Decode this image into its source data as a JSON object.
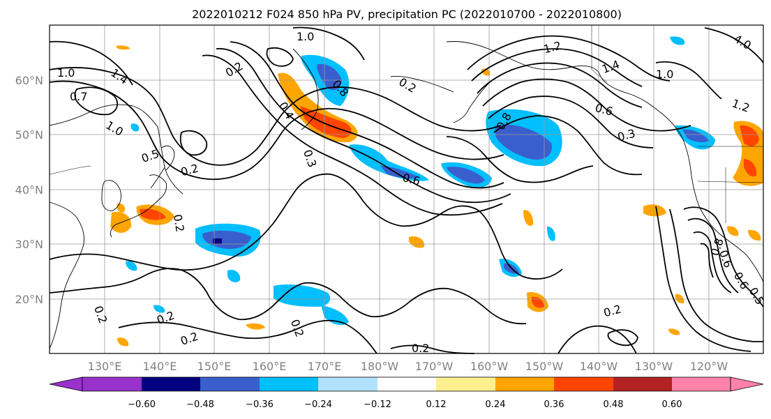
{
  "title": "2022010212 F024 850 hPa PV, precipitation PC (2022010700 - 2022010800)",
  "lat_ticks": [
    "20°N",
    "30°N",
    "40°N",
    "50°N",
    "60°N"
  ],
  "lon_ticks": [
    "130°E",
    "140°E",
    "150°E",
    "160°E",
    "170°E",
    "180°W",
    "170°W",
    "160°W",
    "150°W",
    "140°W",
    "130°W",
    "120°W"
  ],
  "colorbar": {
    "ticks": [
      "−0.60",
      "−0.48",
      "−0.36",
      "−0.24",
      "−0.12",
      "0.12",
      "0.24",
      "0.36",
      "0.48",
      "0.60"
    ],
    "colors": [
      "#9932cc",
      "#000080",
      "#3a5fcd",
      "#00bfff",
      "#b0e2ff",
      "#ffffff",
      "#fff08f",
      "#ffa500",
      "#ff4500",
      "#b22222",
      "#ff82ab"
    ]
  },
  "contour_labels": [
    "1.0",
    "0.7",
    "1.4",
    "1.0",
    "0.5",
    "0.2",
    "0.2",
    "0.2",
    "0.2",
    "0.2",
    "0.2",
    "0.8",
    "0.2",
    "0.4",
    "0.3",
    "1.0",
    "0.6",
    "0.2",
    "1.2",
    "0.8",
    "0.6",
    "0.3",
    "0.2",
    "4.0",
    "1.0",
    "1.4",
    "1.2",
    "0.6",
    "0.8",
    "0.6",
    "0.5",
    "0.2"
  ],
  "colors": {
    "contour": "#000000",
    "grid": "#9a9a9a",
    "tick_text": "#808080"
  }
}
